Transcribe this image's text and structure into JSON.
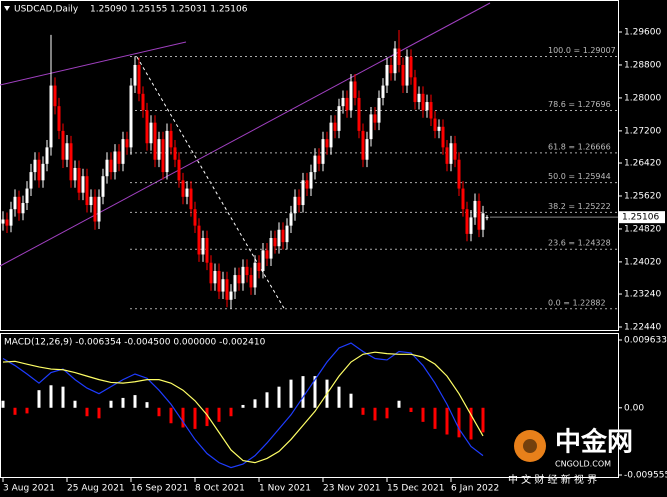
{
  "chart_data": [
    {
      "type": "candlestick",
      "title": "USDCAD,Daily",
      "ohlc_text": "1.25090 1.25155 1.25031 1.25106",
      "ylim": [
        1.22367,
        1.30377
      ],
      "yticks": [
        {
          "value": 1.296,
          "label": "1.29600"
        },
        {
          "value": 1.288,
          "label": "1.28800"
        },
        {
          "value": 1.28,
          "label": "1.28000"
        },
        {
          "value": 1.272,
          "label": "1.27200"
        },
        {
          "value": 1.2642,
          "label": "1.26420"
        },
        {
          "value": 1.2562,
          "label": "1.25620"
        },
        {
          "value": 1.2482,
          "label": "1.24820"
        },
        {
          "value": 1.2402,
          "label": "1.24020"
        },
        {
          "value": 1.2324,
          "label": "1.23240"
        },
        {
          "value": 1.2244,
          "label": "1.22440"
        }
      ],
      "last_price": 1.25106,
      "up_color": "#ffffff",
      "down_color": "#ff0000",
      "fib_levels": [
        {
          "value": 1.29007,
          "label": "100.0 = 1.29007"
        },
        {
          "value": 1.27696,
          "label": "78.6 = 1.27696"
        },
        {
          "value": 1.26666,
          "label": "61.8 = 1.26666"
        },
        {
          "value": 1.25944,
          "label": "50.0 = 1.25944"
        },
        {
          "value": 1.25222,
          "label": "38.2 = 1.25222"
        },
        {
          "value": 1.24328,
          "label": "23.6 = 1.24328"
        },
        {
          "value": 1.22882,
          "label": "0.0 = 1.22882"
        }
      ],
      "categories": [
        "3 Aug 2021",
        null,
        null,
        null,
        null,
        null,
        null,
        null,
        null,
        null,
        null,
        null,
        null,
        null,
        null,
        null,
        "25 Aug 2021",
        null,
        null,
        null,
        null,
        null,
        null,
        null,
        null,
        null,
        null,
        null,
        null,
        null,
        null,
        null,
        "16 Sep 2021",
        null,
        null,
        null,
        null,
        null,
        null,
        null,
        null,
        null,
        null,
        null,
        null,
        null,
        null,
        null,
        "8 Oct 2021",
        null,
        null,
        null,
        null,
        null,
        null,
        null,
        null,
        null,
        null,
        null,
        null,
        null,
        null,
        null,
        "1 Nov 2021",
        null,
        null,
        null,
        null,
        null,
        null,
        null,
        null,
        null,
        null,
        null,
        null,
        null,
        null,
        null,
        "23 Nov 2021",
        null,
        null,
        null,
        null,
        null,
        null,
        null,
        null,
        null,
        null,
        null,
        null,
        null,
        null,
        null,
        "15 Dec 2021",
        null,
        null,
        null,
        null,
        null,
        null,
        null,
        null,
        null,
        null,
        null,
        null,
        null,
        null,
        null,
        "6 Jan 2022",
        null,
        null,
        null,
        null,
        null,
        null,
        null,
        null,
        null
      ],
      "ohlc": [
        [
          1.2495,
          1.2525,
          1.2478,
          1.2505
        ],
        [
          1.2505,
          1.2522,
          1.2472,
          1.249
        ],
        [
          1.249,
          1.2548,
          1.2474,
          1.253
        ],
        [
          1.253,
          1.2578,
          1.2512,
          1.256
        ],
        [
          1.256,
          1.2575,
          1.2502,
          1.252
        ],
        [
          1.252,
          1.2563,
          1.2503,
          1.2545
        ],
        [
          1.2545,
          1.2598,
          1.2528,
          1.258
        ],
        [
          1.258,
          1.264,
          1.2562,
          1.262
        ],
        [
          1.262,
          1.2668,
          1.26,
          1.265
        ],
        [
          1.265,
          1.2668,
          1.2582,
          1.26
        ],
        [
          1.26,
          1.2658,
          1.2582,
          1.264
        ],
        [
          1.264,
          1.2698,
          1.2622,
          1.268
        ],
        [
          1.268,
          1.2953,
          1.266,
          1.283
        ],
        [
          1.283,
          1.285,
          1.276,
          1.278
        ],
        [
          1.278,
          1.28,
          1.27,
          1.272
        ],
        [
          1.272,
          1.2738,
          1.263,
          1.265
        ],
        [
          1.265,
          1.271,
          1.2632,
          1.269
        ],
        [
          1.269,
          1.2708,
          1.2582,
          1.26
        ],
        [
          1.26,
          1.2648,
          1.2582,
          1.263
        ],
        [
          1.263,
          1.2648,
          1.2552,
          1.257
        ],
        [
          1.257,
          1.2628,
          1.2552,
          1.261
        ],
        [
          1.261,
          1.2628,
          1.2522,
          1.254
        ],
        [
          1.254,
          1.2578,
          1.2522,
          1.256
        ],
        [
          1.256,
          1.2578,
          1.248,
          1.25
        ],
        [
          1.25,
          1.2578,
          1.2482,
          1.256
        ],
        [
          1.256,
          1.2628,
          1.2542,
          1.261
        ],
        [
          1.261,
          1.2668,
          1.2592,
          1.265
        ],
        [
          1.265,
          1.2668,
          1.2602,
          1.262
        ],
        [
          1.262,
          1.2688,
          1.2602,
          1.267
        ],
        [
          1.267,
          1.2688,
          1.2622,
          1.264
        ],
        [
          1.264,
          1.2718,
          1.2622,
          1.27
        ],
        [
          1.27,
          1.2718,
          1.2662,
          1.268
        ],
        [
          1.268,
          1.2848,
          1.2662,
          1.283
        ],
        [
          1.283,
          1.2901,
          1.2812,
          1.288
        ],
        [
          1.288,
          1.2898,
          1.2792,
          1.281
        ],
        [
          1.281,
          1.2828,
          1.2752,
          1.277
        ],
        [
          1.277,
          1.2788,
          1.2672,
          1.269
        ],
        [
          1.269,
          1.2758,
          1.2672,
          1.274
        ],
        [
          1.274,
          1.2758,
          1.2632,
          1.265
        ],
        [
          1.265,
          1.2718,
          1.2632,
          1.27
        ],
        [
          1.27,
          1.2718,
          1.2602,
          1.262
        ],
        [
          1.262,
          1.2738,
          1.2602,
          1.272
        ],
        [
          1.272,
          1.2738,
          1.2662,
          1.268
        ],
        [
          1.268,
          1.2698,
          1.2632,
          1.265
        ],
        [
          1.265,
          1.2668,
          1.2582,
          1.26
        ],
        [
          1.26,
          1.2618,
          1.2542,
          1.256
        ],
        [
          1.256,
          1.2598,
          1.2542,
          1.258
        ],
        [
          1.258,
          1.2598,
          1.2512,
          1.253
        ],
        [
          1.253,
          1.2548,
          1.2472,
          1.249
        ],
        [
          1.249,
          1.2508,
          1.2402,
          1.242
        ],
        [
          1.242,
          1.2478,
          1.2402,
          1.246
        ],
        [
          1.246,
          1.2478,
          1.2382,
          1.24
        ],
        [
          1.24,
          1.2418,
          1.2332,
          1.235
        ],
        [
          1.235,
          1.2398,
          1.2332,
          1.238
        ],
        [
          1.238,
          1.2398,
          1.2312,
          1.233
        ],
        [
          1.233,
          1.2378,
          1.2312,
          1.236
        ],
        [
          1.236,
          1.2378,
          1.2292,
          1.231
        ],
        [
          1.231,
          1.2348,
          1.2288,
          1.233
        ],
        [
          1.233,
          1.2388,
          1.2312,
          1.237
        ],
        [
          1.237,
          1.2388,
          1.2332,
          1.235
        ],
        [
          1.235,
          1.2408,
          1.2332,
          1.239
        ],
        [
          1.239,
          1.2408,
          1.2352,
          1.237
        ],
        [
          1.237,
          1.2388,
          1.2322,
          1.234
        ],
        [
          1.234,
          1.2418,
          1.2322,
          1.24
        ],
        [
          1.24,
          1.2418,
          1.2362,
          1.238
        ],
        [
          1.238,
          1.2448,
          1.2362,
          1.243
        ],
        [
          1.243,
          1.2448,
          1.2392,
          1.241
        ],
        [
          1.241,
          1.2478,
          1.2392,
          1.246
        ],
        [
          1.246,
          1.2478,
          1.2422,
          1.244
        ],
        [
          1.244,
          1.2498,
          1.2422,
          1.248
        ],
        [
          1.248,
          1.2498,
          1.2432,
          1.245
        ],
        [
          1.245,
          1.2508,
          1.2432,
          1.249
        ],
        [
          1.249,
          1.2538,
          1.2472,
          1.252
        ],
        [
          1.252,
          1.2578,
          1.2502,
          1.256
        ],
        [
          1.256,
          1.2578,
          1.2522,
          1.254
        ],
        [
          1.254,
          1.2618,
          1.2522,
          1.26
        ],
        [
          1.26,
          1.2618,
          1.2562,
          1.258
        ],
        [
          1.258,
          1.2638,
          1.2562,
          1.262
        ],
        [
          1.262,
          1.2678,
          1.2602,
          1.266
        ],
        [
          1.266,
          1.2678,
          1.2622,
          1.264
        ],
        [
          1.264,
          1.2718,
          1.2622,
          1.27
        ],
        [
          1.27,
          1.2718,
          1.2662,
          1.268
        ],
        [
          1.268,
          1.2758,
          1.2662,
          1.274
        ],
        [
          1.274,
          1.2758,
          1.2702,
          1.272
        ],
        [
          1.272,
          1.2798,
          1.2702,
          1.278
        ],
        [
          1.278,
          1.2818,
          1.2762,
          1.28
        ],
        [
          1.28,
          1.2818,
          1.2752,
          1.277
        ],
        [
          1.277,
          1.2858,
          1.2752,
          1.284
        ],
        [
          1.284,
          1.2858,
          1.2782,
          1.28
        ],
        [
          1.28,
          1.2818,
          1.2702,
          1.272
        ],
        [
          1.272,
          1.2738,
          1.2632,
          1.265
        ],
        [
          1.265,
          1.2718,
          1.2632,
          1.27
        ],
        [
          1.27,
          1.2778,
          1.2682,
          1.276
        ],
        [
          1.276,
          1.2778,
          1.2722,
          1.274
        ],
        [
          1.274,
          1.2818,
          1.2722,
          1.28
        ],
        [
          1.28,
          1.2848,
          1.2782,
          1.283
        ],
        [
          1.283,
          1.2898,
          1.2812,
          1.288
        ],
        [
          1.288,
          1.2898,
          1.2842,
          1.286
        ],
        [
          1.286,
          1.2938,
          1.2842,
          1.292
        ],
        [
          1.292,
          1.2965,
          1.2862,
          1.288
        ],
        [
          1.288,
          1.2898,
          1.2812,
          1.283
        ],
        [
          1.283,
          1.2918,
          1.2812,
          1.29
        ],
        [
          1.29,
          1.2918,
          1.2832,
          1.285
        ],
        [
          1.285,
          1.2868,
          1.2772,
          1.279
        ],
        [
          1.279,
          1.2828,
          1.2772,
          1.281
        ],
        [
          1.281,
          1.2828,
          1.2752,
          1.277
        ],
        [
          1.277,
          1.2808,
          1.2752,
          1.279
        ],
        [
          1.279,
          1.2808,
          1.2732,
          1.275
        ],
        [
          1.275,
          1.2768,
          1.2702,
          1.272
        ],
        [
          1.272,
          1.2748,
          1.2702,
          1.273
        ],
        [
          1.273,
          1.2748,
          1.2662,
          1.268
        ],
        [
          1.268,
          1.2698,
          1.2622,
          1.264
        ],
        [
          1.264,
          1.2708,
          1.2622,
          1.269
        ],
        [
          1.269,
          1.2708,
          1.2632,
          1.265
        ],
        [
          1.265,
          1.2668,
          1.2562,
          1.258
        ],
        [
          1.258,
          1.2598,
          1.2512,
          1.253
        ],
        [
          1.253,
          1.2548,
          1.2452,
          1.247
        ],
        [
          1.247,
          1.2528,
          1.2452,
          1.251
        ],
        [
          1.251,
          1.2568,
          1.2492,
          1.255
        ],
        [
          1.255,
          1.2568,
          1.2462,
          1.248
        ],
        [
          1.248,
          1.2538,
          1.2462,
          1.252
        ],
        [
          1.2509,
          1.25155,
          1.25031,
          1.25106
        ]
      ]
    },
    {
      "type": "macd",
      "title": "MACD(12,26,9) -0.006354 -0.004500 0.000000 -0.002410",
      "ylim": [
        -0.009555,
        0.009633
      ],
      "yticks": [
        0.009633,
        {
          "value": 0,
          "label": "0.00"
        },
        -0.009555
      ],
      "x": [
        0,
        3,
        6,
        9,
        12,
        15,
        18,
        21,
        24,
        27,
        30,
        33,
        36,
        39,
        42,
        45,
        48,
        51,
        54,
        57,
        60,
        63,
        66,
        69,
        72,
        75,
        78,
        81,
        84,
        87,
        90,
        93,
        96,
        99,
        102,
        105,
        108,
        111,
        114,
        117,
        120
      ],
      "histogram": [
        0.001,
        -0.001,
        -0.0008,
        0.0025,
        0.0032,
        0.003,
        0.001,
        -0.0012,
        -0.0015,
        0.001,
        0.0014,
        0.0018,
        0.0008,
        -0.0012,
        -0.0022,
        -0.0028,
        -0.003,
        -0.0026,
        -0.002,
        -0.0012,
        0.0004,
        0.0012,
        0.0022,
        0.003,
        0.004,
        0.0045,
        0.0045,
        0.004,
        0.003,
        0.002,
        -0.001,
        -0.0018,
        -0.0015,
        0.001,
        -0.0006,
        -0.002,
        -0.003,
        -0.0038,
        -0.0042,
        -0.0045,
        -0.0035
      ],
      "series": [
        {
          "color": "#1e3cff",
          "values": [
            0.007,
            0.006,
            0.0048,
            0.0035,
            0.005,
            0.0055,
            0.004,
            0.0028,
            0.002,
            0.003,
            0.004,
            0.0048,
            0.0042,
            0.0025,
            0.0005,
            -0.002,
            -0.0045,
            -0.0065,
            -0.0078,
            -0.0085,
            -0.008,
            -0.0068,
            -0.005,
            -0.003,
            -0.001,
            0.0015,
            0.004,
            0.0065,
            0.0085,
            0.0092,
            0.008,
            0.007,
            0.0068,
            0.008,
            0.0078,
            0.006,
            0.0035,
            0.0005,
            -0.003,
            -0.0055,
            -0.0068
          ]
        },
        {
          "color": "#ffff66",
          "values": [
            0.0065,
            0.0066,
            0.0062,
            0.0058,
            0.0055,
            0.0054,
            0.005,
            0.0045,
            0.004,
            0.0036,
            0.0035,
            0.0037,
            0.004,
            0.004,
            0.0035,
            0.0025,
            0.001,
            -0.001,
            -0.0035,
            -0.006,
            -0.0075,
            -0.0078,
            -0.0072,
            -0.0062,
            -0.0045,
            -0.0025,
            -0.0005,
            0.002,
            0.0045,
            0.0065,
            0.0076,
            0.0079,
            0.0077,
            0.0076,
            0.0076,
            0.0072,
            0.0062,
            0.0045,
            0.002,
            -0.001,
            -0.004
          ]
        }
      ]
    }
  ],
  "watermark": {
    "brand": "中金网",
    "site": "CNGOLD.COM",
    "slogan": "中 文 财 经 新 视 界"
  }
}
